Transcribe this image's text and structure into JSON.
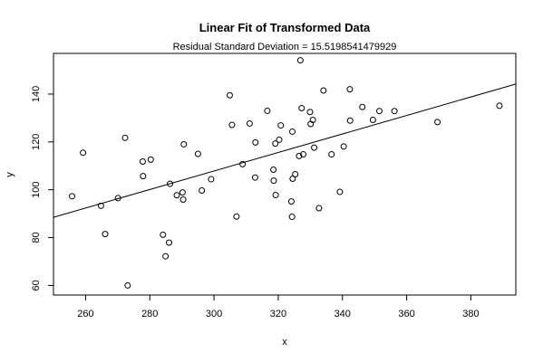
{
  "chart_data": {
    "type": "scatter",
    "title": "Linear Fit of Transformed Data",
    "subtitle": "Residual Standard Deviation =  15.5198541479929",
    "xlabel": "x",
    "ylabel": "y",
    "xlim": [
      250,
      394
    ],
    "ylim": [
      56,
      157
    ],
    "xticks": [
      260,
      280,
      300,
      320,
      340,
      360,
      380
    ],
    "yticks": [
      60,
      80,
      100,
      120,
      140
    ],
    "grid": false,
    "fit_line": {
      "x": [
        250,
        394
      ],
      "y": [
        88.5,
        144.2
      ]
    },
    "points": [
      {
        "x": 255.8,
        "y": 97.3
      },
      {
        "x": 259.2,
        "y": 115.5
      },
      {
        "x": 264.8,
        "y": 93.3
      },
      {
        "x": 266.1,
        "y": 81.5
      },
      {
        "x": 270.1,
        "y": 96.5
      },
      {
        "x": 272.3,
        "y": 121.7
      },
      {
        "x": 273.1,
        "y": 60.0
      },
      {
        "x": 277.8,
        "y": 111.8
      },
      {
        "x": 277.9,
        "y": 105.7
      },
      {
        "x": 280.3,
        "y": 112.6
      },
      {
        "x": 284.1,
        "y": 81.2
      },
      {
        "x": 284.9,
        "y": 72.2
      },
      {
        "x": 286.0,
        "y": 77.9
      },
      {
        "x": 286.3,
        "y": 102.5
      },
      {
        "x": 288.4,
        "y": 97.7
      },
      {
        "x": 290.2,
        "y": 98.9
      },
      {
        "x": 290.4,
        "y": 95.9
      },
      {
        "x": 290.6,
        "y": 119.0
      },
      {
        "x": 295.0,
        "y": 115.0
      },
      {
        "x": 296.2,
        "y": 99.7
      },
      {
        "x": 299.1,
        "y": 104.4
      },
      {
        "x": 304.9,
        "y": 139.5
      },
      {
        "x": 305.6,
        "y": 127.1
      },
      {
        "x": 307.0,
        "y": 88.8
      },
      {
        "x": 308.9,
        "y": 110.7
      },
      {
        "x": 311.1,
        "y": 127.7
      },
      {
        "x": 312.8,
        "y": 105.1
      },
      {
        "x": 312.9,
        "y": 119.8
      },
      {
        "x": 316.6,
        "y": 133.0
      },
      {
        "x": 318.5,
        "y": 108.4
      },
      {
        "x": 318.6,
        "y": 103.8
      },
      {
        "x": 319.1,
        "y": 119.3
      },
      {
        "x": 319.2,
        "y": 97.8
      },
      {
        "x": 320.3,
        "y": 120.9
      },
      {
        "x": 320.8,
        "y": 126.9
      },
      {
        "x": 324.1,
        "y": 95.1
      },
      {
        "x": 324.3,
        "y": 88.7
      },
      {
        "x": 324.4,
        "y": 124.3
      },
      {
        "x": 324.5,
        "y": 104.6
      },
      {
        "x": 325.3,
        "y": 106.5
      },
      {
        "x": 326.5,
        "y": 114.1
      },
      {
        "x": 326.9,
        "y": 154.1
      },
      {
        "x": 327.3,
        "y": 134.1
      },
      {
        "x": 327.8,
        "y": 114.8
      },
      {
        "x": 329.9,
        "y": 132.5
      },
      {
        "x": 330.1,
        "y": 127.5
      },
      {
        "x": 330.8,
        "y": 129.2
      },
      {
        "x": 331.2,
        "y": 117.6
      },
      {
        "x": 332.7,
        "y": 92.3
      },
      {
        "x": 334.1,
        "y": 141.5
      },
      {
        "x": 336.6,
        "y": 114.8
      },
      {
        "x": 339.2,
        "y": 99.1
      },
      {
        "x": 340.4,
        "y": 118.1
      },
      {
        "x": 342.3,
        "y": 142.0
      },
      {
        "x": 342.4,
        "y": 128.9
      },
      {
        "x": 346.2,
        "y": 134.6
      },
      {
        "x": 349.5,
        "y": 129.2
      },
      {
        "x": 351.5,
        "y": 132.9
      },
      {
        "x": 356.2,
        "y": 132.9
      },
      {
        "x": 369.6,
        "y": 128.3
      },
      {
        "x": 388.9,
        "y": 135.1
      }
    ]
  }
}
